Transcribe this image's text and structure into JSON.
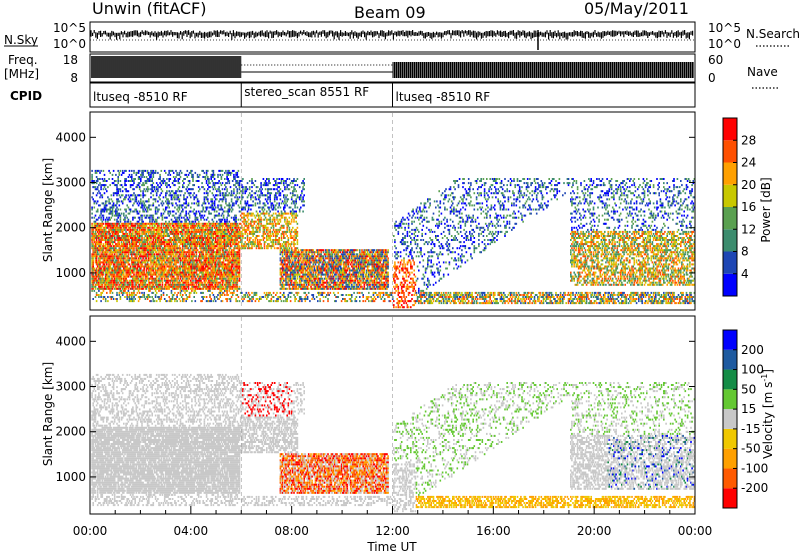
{
  "header": {
    "station": "Unwin (fitACF)",
    "beam": "Beam 09",
    "date": "05/May/2011"
  },
  "chart_data": [
    {
      "type": "line",
      "panel": "noise",
      "left_label": "N.Sky",
      "right_label": "N.Search",
      "tick_labels": [
        "10^5",
        "10^0"
      ],
      "y_range_log": [
        0,
        5
      ],
      "note": "sky noise and search noise traces versus time"
    },
    {
      "type": "line",
      "panel": "frequency",
      "left_label_top": "Freq.",
      "left_label_bottom": "[MHz]",
      "right_label": "Nave",
      "left_ticks": [
        "18",
        "8"
      ],
      "right_ticks": [
        "60",
        "0"
      ],
      "ylim_left": [
        8,
        18
      ],
      "ylim_right": [
        0,
        60
      ]
    },
    {
      "type": "table",
      "panel": "cpid",
      "label": "CPID",
      "segments": [
        {
          "name": "ltuseq -8510 RF",
          "start_hour": 0,
          "end_hour": 6
        },
        {
          "name": "stereo_scan 8551 RF",
          "start_hour": 6,
          "end_hour": 12
        },
        {
          "name": "ltuseq -8510 RF",
          "start_hour": 12,
          "end_hour": 24
        }
      ]
    },
    {
      "type": "heatmap",
      "panel": "power",
      "ylabel": "Slant Range [km]",
      "ylim": [
        180,
        4560
      ],
      "yticks": [
        1000,
        2000,
        3000,
        4000
      ],
      "colorbar_label": "Power [dB]",
      "colorbar_ticks": [
        4,
        8,
        12,
        16,
        20,
        24,
        28
      ],
      "colorbar_range": [
        0,
        32
      ],
      "colors": [
        "#0000ff",
        "#1e46b4",
        "#3c8c6e",
        "#5aa050",
        "#c8c800",
        "#ffa000",
        "#ff5000",
        "#ff0000"
      ]
    },
    {
      "type": "heatmap",
      "panel": "velocity",
      "ylabel": "Slant Range [km]",
      "ylim": [
        180,
        4560
      ],
      "yticks": [
        1000,
        2000,
        3000,
        4000
      ],
      "colorbar_label_main": "Velocity [m s",
      "colorbar_label_exp": "-1",
      "colorbar_label_end": "]",
      "colorbar_ticks": [
        "-200",
        "-100",
        "-50",
        "-15",
        "15",
        "50",
        "100",
        "200"
      ],
      "colors": [
        "#ff0000",
        "#ff5a00",
        "#ffa000",
        "#f0c800",
        "#c8c8c8",
        "#64c832",
        "#148c46",
        "#1e5aa0",
        "#0000ff"
      ],
      "ground_scatter_color": "#c8c8c8"
    }
  ],
  "time_axis": {
    "xlabel": "Time UT",
    "ticks": [
      "00:00",
      "04:00",
      "08:00",
      "12:00",
      "16:00",
      "20:00",
      "00:00"
    ],
    "tick_hours": [
      0,
      4,
      8,
      12,
      16,
      20,
      24
    ],
    "xlim": [
      0,
      24
    ]
  },
  "palette": {
    "axis": "#000000",
    "background": "#ffffff"
  }
}
